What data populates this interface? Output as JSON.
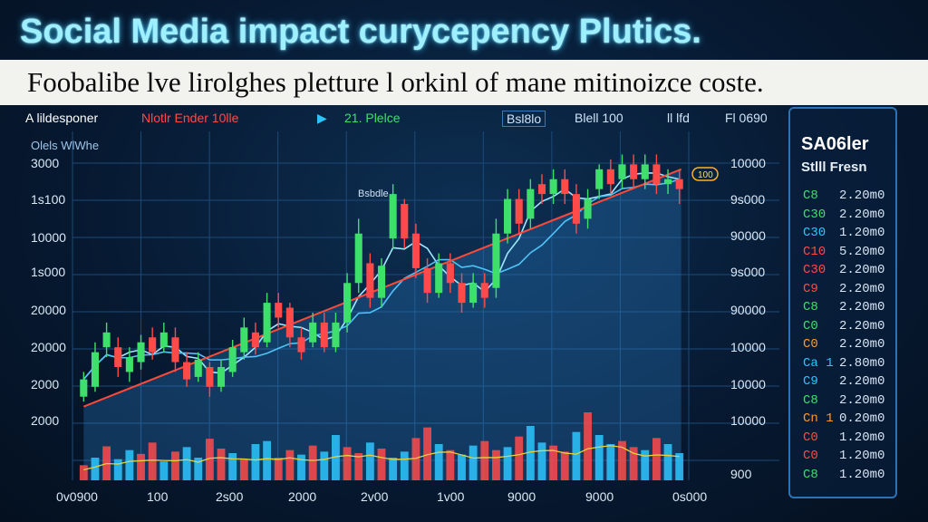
{
  "header": {
    "title": "Social Media impact curycepency Plutics.",
    "subtitle": "Foobalibe lve lirolghes pletture l orkinl of mane mitinoizce coste."
  },
  "legend": {
    "items": [
      {
        "label": "A lildesponer",
        "color": "#ffffff"
      },
      {
        "label": "Nlotlr Ender 10lle",
        "color": "#ff4a4a"
      },
      {
        "label": "21. Plelce",
        "color": "#3ee06b"
      },
      {
        "label": "Bsl8lo",
        "color": "#cfe3f7"
      },
      {
        "label": "Blell 100",
        "color": "#cfe3f7"
      },
      {
        "label": "ll lfd",
        "color": "#cfe3f7"
      },
      {
        "label": "Fl 0690",
        "color": "#cfe3f7"
      }
    ],
    "play_icon": "play-icon",
    "panel_label": "Olels WlWhe"
  },
  "annotation": {
    "label": "Bsbdle",
    "price_tag": "100"
  },
  "side_panel": {
    "title": "SA06ler",
    "subtitle": "Stlll Fresn",
    "rows": [
      {
        "label": "C8",
        "value": "2.20m0",
        "color": "#3ee06b"
      },
      {
        "label": "C30",
        "value": "2.20m0",
        "color": "#3ee06b"
      },
      {
        "label": "C30",
        "value": "1.20m0",
        "color": "#2ec5ff"
      },
      {
        "label": "C10",
        "value": "5.20m0",
        "color": "#ff4a4a"
      },
      {
        "label": "C30",
        "value": "2.20m0",
        "color": "#ff4a4a"
      },
      {
        "label": "C9",
        "value": "2.20m0",
        "color": "#ff4a4a"
      },
      {
        "label": "C8",
        "value": "2.20m0",
        "color": "#3ee06b"
      },
      {
        "label": "C0",
        "value": "2.20m0",
        "color": "#3ee06b"
      },
      {
        "label": "C0",
        "value": "2.20m0",
        "color": "#ff9a2a"
      },
      {
        "label": "Ca 1",
        "value": "2.80m0",
        "color": "#2ec5ff"
      },
      {
        "label": "C9",
        "value": "2.20m0",
        "color": "#2ec5ff"
      },
      {
        "label": "C8",
        "value": "2.20m0",
        "color": "#3ee06b"
      },
      {
        "label": "Cn 1",
        "value": "0.20m0",
        "color": "#ff9a2a"
      },
      {
        "label": "C0",
        "value": "1.20m0",
        "color": "#ff4a4a"
      },
      {
        "label": "C0",
        "value": "1.20m0",
        "color": "#ff4a4a"
      },
      {
        "label": "C8",
        "value": "1.20m0",
        "color": "#3ee06b"
      }
    ]
  },
  "chart_data": {
    "type": "candlestick",
    "title": "Social Media impact curycepency Plutics.",
    "left_axis_ticks": [
      "3000",
      "1s100",
      "10000",
      "1s000",
      "20000",
      "20000",
      "2000",
      "2000"
    ],
    "right_axis_ticks": [
      "10000",
      "9s000",
      "90000",
      "9s000",
      "90000",
      "10000",
      "10000",
      "10000",
      "900"
    ],
    "x_ticks": [
      "0v0900",
      "100",
      "2s00",
      "2000",
      "2v00",
      "1v00",
      "9000",
      "9000",
      "0s000"
    ],
    "y_range": [
      0,
      100
    ],
    "candles": [
      {
        "o": 10,
        "c": 17,
        "h": 20,
        "l": 8,
        "up": true
      },
      {
        "o": 14,
        "c": 28,
        "h": 32,
        "l": 12,
        "up": true
      },
      {
        "o": 30,
        "c": 36,
        "h": 40,
        "l": 26,
        "up": true
      },
      {
        "o": 30,
        "c": 22,
        "h": 34,
        "l": 18,
        "up": false
      },
      {
        "o": 20,
        "c": 26,
        "h": 30,
        "l": 16,
        "up": true
      },
      {
        "o": 24,
        "c": 32,
        "h": 35,
        "l": 21,
        "up": true
      },
      {
        "o": 34,
        "c": 28,
        "h": 38,
        "l": 25,
        "up": false
      },
      {
        "o": 30,
        "c": 36,
        "h": 40,
        "l": 28,
        "up": true
      },
      {
        "o": 34,
        "c": 24,
        "h": 38,
        "l": 20,
        "up": false
      },
      {
        "o": 24,
        "c": 17,
        "h": 28,
        "l": 14,
        "up": false
      },
      {
        "o": 18,
        "c": 25,
        "h": 28,
        "l": 16,
        "up": true
      },
      {
        "o": 22,
        "c": 14,
        "h": 24,
        "l": 10,
        "up": false
      },
      {
        "o": 14,
        "c": 22,
        "h": 25,
        "l": 12,
        "up": true
      },
      {
        "o": 20,
        "c": 30,
        "h": 33,
        "l": 18,
        "up": true
      },
      {
        "o": 28,
        "c": 38,
        "h": 42,
        "l": 25,
        "up": true
      },
      {
        "o": 36,
        "c": 30,
        "h": 40,
        "l": 27,
        "up": false
      },
      {
        "o": 32,
        "c": 48,
        "h": 52,
        "l": 30,
        "up": true
      },
      {
        "o": 48,
        "c": 42,
        "h": 52,
        "l": 38,
        "up": false
      },
      {
        "o": 46,
        "c": 34,
        "h": 48,
        "l": 30,
        "up": false
      },
      {
        "o": 34,
        "c": 28,
        "h": 38,
        "l": 25,
        "up": false
      },
      {
        "o": 32,
        "c": 40,
        "h": 44,
        "l": 30,
        "up": true
      },
      {
        "o": 40,
        "c": 30,
        "h": 44,
        "l": 28,
        "up": false
      },
      {
        "o": 30,
        "c": 40,
        "h": 44,
        "l": 28,
        "up": true
      },
      {
        "o": 40,
        "c": 56,
        "h": 60,
        "l": 36,
        "up": true
      },
      {
        "o": 56,
        "c": 76,
        "h": 82,
        "l": 52,
        "up": true
      },
      {
        "o": 64,
        "c": 50,
        "h": 68,
        "l": 46,
        "up": false
      },
      {
        "o": 50,
        "c": 63,
        "h": 66,
        "l": 46,
        "up": true
      },
      {
        "o": 74,
        "c": 92,
        "h": 96,
        "l": 70,
        "up": true
      },
      {
        "o": 88,
        "c": 74,
        "h": 90,
        "l": 70,
        "up": false
      },
      {
        "o": 76,
        "c": 62,
        "h": 80,
        "l": 58,
        "up": false
      },
      {
        "o": 62,
        "c": 52,
        "h": 66,
        "l": 48,
        "up": false
      },
      {
        "o": 52,
        "c": 64,
        "h": 68,
        "l": 50,
        "up": true
      },
      {
        "o": 64,
        "c": 56,
        "h": 68,
        "l": 52,
        "up": false
      },
      {
        "o": 56,
        "c": 48,
        "h": 60,
        "l": 44,
        "up": false
      },
      {
        "o": 48,
        "c": 56,
        "h": 60,
        "l": 46,
        "up": true
      },
      {
        "o": 56,
        "c": 50,
        "h": 60,
        "l": 46,
        "up": false
      },
      {
        "o": 54,
        "c": 76,
        "h": 82,
        "l": 50,
        "up": true
      },
      {
        "o": 76,
        "c": 90,
        "h": 94,
        "l": 72,
        "up": true
      },
      {
        "o": 90,
        "c": 80,
        "h": 94,
        "l": 76,
        "up": false
      },
      {
        "o": 82,
        "c": 94,
        "h": 98,
        "l": 78,
        "up": true
      },
      {
        "o": 96,
        "c": 92,
        "h": 100,
        "l": 88,
        "up": false
      },
      {
        "o": 92,
        "c": 98,
        "h": 102,
        "l": 88,
        "up": true
      },
      {
        "o": 98,
        "c": 92,
        "h": 102,
        "l": 88,
        "up": false
      },
      {
        "o": 92,
        "c": 80,
        "h": 96,
        "l": 76,
        "up": false
      },
      {
        "o": 82,
        "c": 90,
        "h": 94,
        "l": 78,
        "up": true
      },
      {
        "o": 94,
        "c": 102,
        "h": 104,
        "l": 90,
        "up": true
      },
      {
        "o": 102,
        "c": 96,
        "h": 106,
        "l": 92,
        "up": false
      },
      {
        "o": 98,
        "c": 104,
        "h": 108,
        "l": 94,
        "up": true
      },
      {
        "o": 104,
        "c": 98,
        "h": 108,
        "l": 94,
        "up": false
      },
      {
        "o": 98,
        "c": 104,
        "h": 108,
        "l": 94,
        "up": true
      },
      {
        "o": 104,
        "c": 96,
        "h": 108,
        "l": 92,
        "up": false
      },
      {
        "o": 96,
        "c": 98,
        "h": 102,
        "l": 92,
        "up": true
      },
      {
        "o": 98,
        "c": 94,
        "h": 102,
        "l": 88,
        "up": false
      }
    ],
    "trend_line": {
      "start": 6,
      "end": 102,
      "color": "#ff4a3a"
    },
    "volume": [
      20,
      30,
      45,
      28,
      40,
      35,
      50,
      25,
      38,
      44,
      30,
      55,
      42,
      36,
      28,
      48,
      52,
      30,
      40,
      34,
      46,
      38,
      60,
      44,
      36,
      50,
      42,
      30,
      38,
      56,
      70,
      48,
      40,
      34,
      46,
      52,
      40,
      44,
      58,
      72,
      50,
      46,
      38,
      64,
      90,
      60,
      48,
      52,
      44,
      40,
      56,
      48,
      36
    ],
    "volume_colors_cycle": [
      "#ff4a4a",
      "#2ec5ff",
      "#ff4a4a",
      "#2ec5ff",
      "#2ec5ff",
      "#ff4a4a"
    ]
  }
}
